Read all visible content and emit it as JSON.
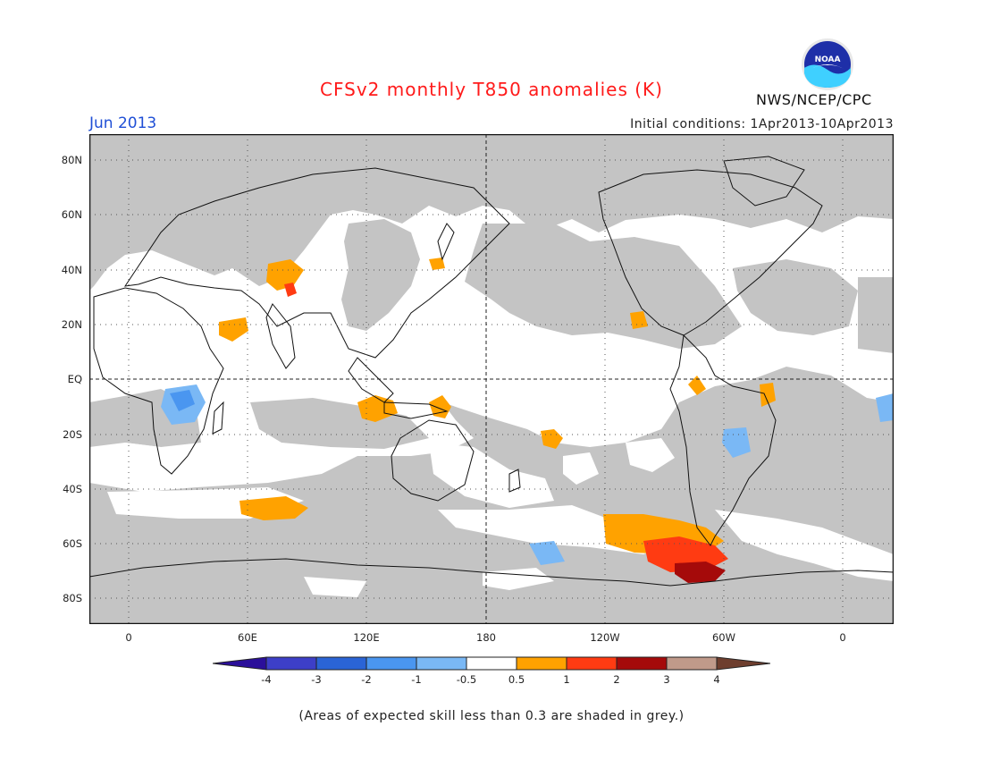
{
  "header": {
    "title": "CFSv2 monthly T850 anomalies (K)",
    "month": "Jun 2013",
    "initial_conditions": "Initial conditions: 1Apr2013-10Apr2013",
    "agency": "NWS/NCEP/CPC",
    "logo_text": "NOAA"
  },
  "map": {
    "lat_labels": [
      "80N",
      "60N",
      "40N",
      "20N",
      "EQ",
      "20S",
      "40S",
      "60S",
      "80S"
    ],
    "lon_labels": [
      "0",
      "60E",
      "120E",
      "180",
      "120W",
      "60W",
      "0"
    ],
    "low_skill_color": "#c4c4c4",
    "background_color": "#ffffff"
  },
  "colorbar": {
    "labels": [
      "-4",
      "-3",
      "-2",
      "-1",
      "-0.5",
      "0.5",
      "1",
      "2",
      "3",
      "4"
    ],
    "colors": [
      "#2b0f9a",
      "#3d3fc8",
      "#2a64d6",
      "#4a96f0",
      "#7ab8f5",
      "#ffffff",
      "#ffa200",
      "#ff3b12",
      "#a50a0a",
      "#c09a8a",
      "#6e3e2e"
    ]
  },
  "footer": {
    "note": "(Areas of expected skill less than 0.3 are shaded in grey.)"
  }
}
